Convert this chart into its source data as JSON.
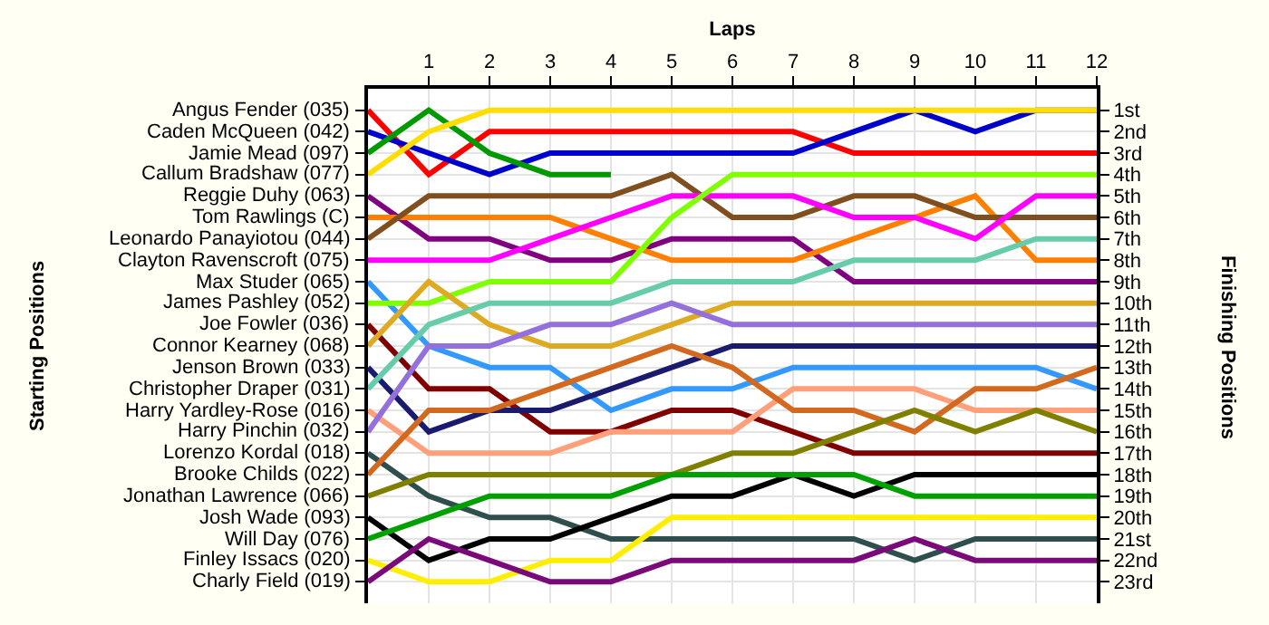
{
  "chart_data": {
    "type": "line",
    "xlabel": "Laps",
    "ylabel": "Finishing Positions",
    "annotations": [
      "Starting Positions",
      "Angus Fender (035)",
      "Caden McQueen (042)",
      "Jamie Mead (097)",
      "Callum Bradshaw (077)",
      "Reggie Duhy (063)",
      "Tom Rawlings (C)",
      "Leonardo Panayiotou (044)",
      "Clayton Ravenscroft (075)",
      "Max Studer (065)",
      "James Pashley (052)",
      "Joe Fowler (036)",
      "Connor Kearney (068)",
      "Jenson Brown (033)",
      "Christopher Draper (031)",
      "Harry Yardley-Rose (016)",
      "Harry Pinchin (032)",
      "Lorenzo Kordal (018)",
      "Brooke Childs (022)",
      "Jonathan Lawrence (066)",
      "Josh Wade (093)",
      "Will Day (076)",
      "Finley Issacs (020)",
      "Charly Field (019)"
    ],
    "x": [
      0,
      1,
      2,
      3,
      4,
      5,
      6,
      7,
      8,
      9,
      10,
      11,
      12
    ],
    "xlim": [
      0,
      12
    ],
    "xticks": [
      1,
      2,
      3,
      4,
      5,
      6,
      7,
      8,
      9,
      10,
      11,
      12
    ],
    "ylim": [
      24,
      0
    ],
    "yticks": [
      {
        "value": 1,
        "label": "1st"
      },
      {
        "value": 2,
        "label": "2nd"
      },
      {
        "value": 3,
        "label": "3rd"
      },
      {
        "value": 4,
        "label": "4th"
      },
      {
        "value": 5,
        "label": "5th"
      },
      {
        "value": 6,
        "label": "6th"
      },
      {
        "value": 7,
        "label": "7th"
      },
      {
        "value": 8,
        "label": "8th"
      },
      {
        "value": 9,
        "label": "9th"
      },
      {
        "value": 10,
        "label": "10th"
      },
      {
        "value": 11,
        "label": "11th"
      },
      {
        "value": 12,
        "label": "12th"
      },
      {
        "value": 13,
        "label": "13th"
      },
      {
        "value": 14,
        "label": "14th"
      },
      {
        "value": 15,
        "label": "15th"
      },
      {
        "value": 16,
        "label": "16th"
      },
      {
        "value": 17,
        "label": "17th"
      },
      {
        "value": 18,
        "label": "18th"
      },
      {
        "value": 19,
        "label": "19th"
      },
      {
        "value": 20,
        "label": "20th"
      },
      {
        "value": 21,
        "label": "21st"
      },
      {
        "value": 22,
        "label": "22nd"
      },
      {
        "value": 23,
        "label": "23rd"
      }
    ],
    "grid": true,
    "series": [
      {
        "color": "#ff0000",
        "values": [
          1,
          4,
          2,
          2,
          2,
          2,
          2,
          2,
          3,
          3,
          3,
          3,
          3
        ]
      },
      {
        "color": "#0000cc",
        "values": [
          2,
          3,
          4,
          3,
          3,
          3,
          3,
          3,
          2,
          1,
          2,
          1,
          1
        ]
      },
      {
        "color": "#009900",
        "values": [
          3,
          1,
          3,
          4,
          4,
          null,
          null,
          null,
          null,
          null,
          null,
          null,
          null
        ]
      },
      {
        "color": "#ffdd00",
        "values": [
          4,
          2,
          1,
          1,
          1,
          1,
          1,
          1,
          1,
          1,
          1,
          1,
          1
        ]
      },
      {
        "color": "#800080",
        "values": [
          5,
          7,
          7,
          8,
          8,
          7,
          7,
          7,
          9,
          9,
          9,
          9,
          9
        ]
      },
      {
        "color": "#ff8000",
        "values": [
          6,
          6,
          6,
          6,
          7,
          8,
          8,
          8,
          7,
          6,
          5,
          8,
          8
        ]
      },
      {
        "color": "#7f4f1f",
        "values": [
          7,
          5,
          5,
          5,
          5,
          4,
          6,
          6,
          5,
          5,
          6,
          6,
          6
        ]
      },
      {
        "color": "#ff00ff",
        "values": [
          8,
          8,
          8,
          7,
          6,
          5,
          5,
          5,
          6,
          6,
          7,
          5,
          5
        ]
      },
      {
        "color": "#3399ff",
        "values": [
          9,
          12,
          13,
          13,
          15,
          14,
          14,
          13,
          13,
          13,
          13,
          13,
          14
        ]
      },
      {
        "color": "#80ff00",
        "values": [
          10,
          10,
          9,
          9,
          9,
          6,
          4,
          4,
          4,
          4,
          4,
          4,
          4
        ]
      },
      {
        "color": "#800000",
        "values": [
          11,
          14,
          14,
          16,
          16,
          15,
          15,
          16,
          17,
          17,
          17,
          17,
          17
        ]
      },
      {
        "color": "#ddaa22",
        "values": [
          12,
          9,
          11,
          12,
          12,
          11,
          10,
          10,
          10,
          10,
          10,
          10,
          10
        ]
      },
      {
        "color": "#1a1a6e",
        "values": [
          13,
          16,
          15,
          15,
          14,
          13,
          12,
          12,
          12,
          12,
          12,
          12,
          12
        ]
      },
      {
        "color": "#66ccaa",
        "values": [
          14,
          11,
          10,
          10,
          10,
          9,
          9,
          9,
          8,
          8,
          8,
          7,
          7
        ]
      },
      {
        "color": "#ffa07a",
        "values": [
          15,
          17,
          17,
          17,
          16,
          16,
          16,
          14,
          14,
          14,
          15,
          15,
          15
        ]
      },
      {
        "color": "#9370db",
        "values": [
          16,
          12,
          12,
          11,
          11,
          10,
          11,
          11,
          11,
          11,
          11,
          11,
          11
        ]
      },
      {
        "color": "#2f4f4f",
        "values": [
          17,
          19,
          20,
          20,
          21,
          21,
          21,
          21,
          21,
          22,
          21,
          21,
          21
        ]
      },
      {
        "color": "#d2691e",
        "values": [
          18,
          15,
          15,
          14,
          13,
          12,
          13,
          15,
          15,
          16,
          14,
          14,
          13
        ]
      },
      {
        "color": "#808000",
        "values": [
          19,
          18,
          18,
          18,
          18,
          18,
          17,
          17,
          16,
          15,
          16,
          15,
          16
        ]
      },
      {
        "color": "#000000",
        "values": [
          20,
          22,
          21,
          21,
          20,
          19,
          19,
          18,
          19,
          18,
          18,
          18,
          18
        ]
      },
      {
        "color": "#00a000",
        "values": [
          21,
          20,
          19,
          19,
          19,
          18,
          18,
          18,
          18,
          19,
          19,
          19,
          19
        ]
      },
      {
        "color": "#ffee00",
        "values": [
          22,
          23,
          23,
          22,
          22,
          20,
          20,
          20,
          20,
          20,
          20,
          20,
          20
        ]
      },
      {
        "color": "#7a0a7a",
        "values": [
          23,
          21,
          22,
          23,
          23,
          22,
          22,
          22,
          22,
          21,
          22,
          22,
          22
        ]
      }
    ]
  }
}
